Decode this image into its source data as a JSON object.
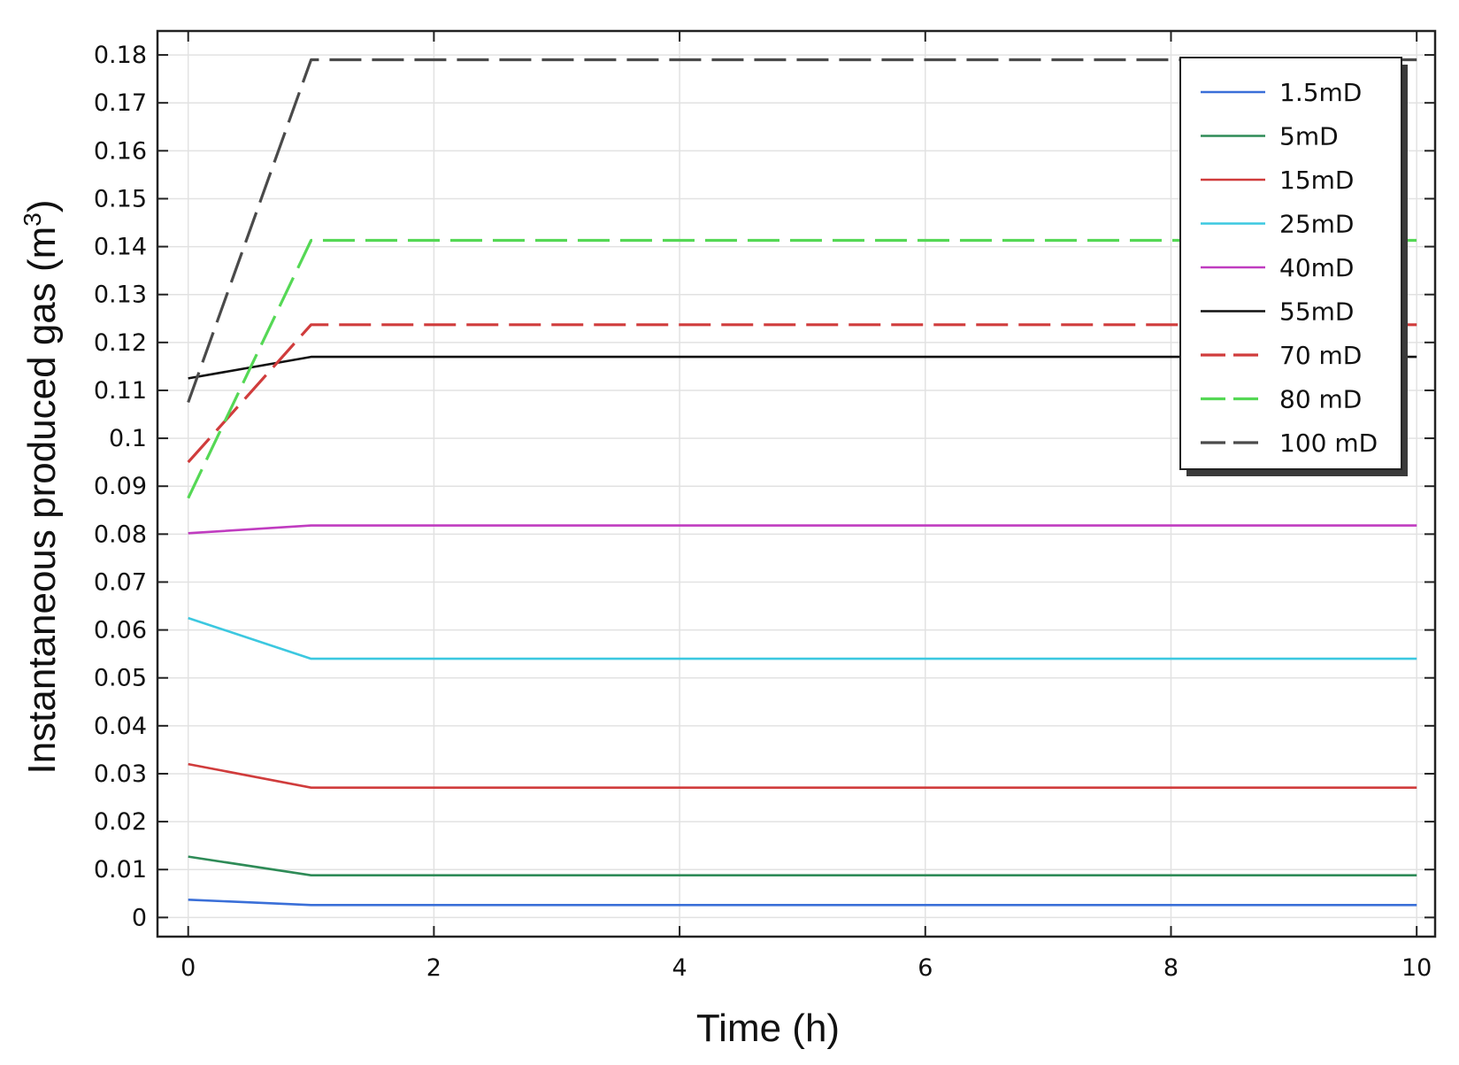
{
  "chart_data": {
    "type": "line",
    "title": "",
    "xlabel": "Time (h)",
    "ylabel_main": "Instantaneous produced gas (m",
    "ylabel_sup": "3",
    "ylabel_end": ")",
    "xlim": [
      -0.25,
      10.15
    ],
    "ylim": [
      -0.004,
      0.185
    ],
    "xticks": [
      0,
      2,
      4,
      6,
      8,
      10
    ],
    "xtick_labels": [
      "0",
      "2",
      "4",
      "6",
      "8",
      "10"
    ],
    "yticks": [
      0,
      0.01,
      0.02,
      0.03,
      0.04,
      0.05,
      0.06,
      0.07,
      0.08,
      0.09,
      0.1,
      0.11,
      0.12,
      0.13,
      0.14,
      0.15,
      0.16,
      0.17,
      0.18
    ],
    "ytick_labels": [
      "0",
      "0.01",
      "0.02",
      "0.03",
      "0.04",
      "0.05",
      "0.06",
      "0.07",
      "0.08",
      "0.09",
      "0.1",
      "0.11",
      "0.12",
      "0.13",
      "0.14",
      "0.15",
      "0.16",
      "0.17",
      "0.18"
    ],
    "grid": true,
    "legend_position": "top-right",
    "series": [
      {
        "name": "1.5mD",
        "color": "#3a6fd8",
        "dashed": false,
        "x": [
          0,
          1,
          10
        ],
        "y": [
          0.0037,
          0.0026,
          0.0026
        ]
      },
      {
        "name": "5mD",
        "color": "#2e8b57",
        "dashed": false,
        "x": [
          0,
          1,
          10
        ],
        "y": [
          0.0127,
          0.0088,
          0.0088
        ]
      },
      {
        "name": "15mD",
        "color": "#d03c3c",
        "dashed": false,
        "x": [
          0,
          1,
          10
        ],
        "y": [
          0.032,
          0.0271,
          0.0271
        ]
      },
      {
        "name": "25mD",
        "color": "#3cc8e0",
        "dashed": false,
        "x": [
          0,
          1,
          10
        ],
        "y": [
          0.0625,
          0.054,
          0.054
        ]
      },
      {
        "name": "40mD",
        "color": "#c03cc0",
        "dashed": false,
        "x": [
          0,
          1,
          10
        ],
        "y": [
          0.0802,
          0.0818,
          0.0818
        ]
      },
      {
        "name": "55mD",
        "color": "#111111",
        "dashed": false,
        "x": [
          0,
          1,
          10
        ],
        "y": [
          0.1125,
          0.117,
          0.117
        ]
      },
      {
        "name": "70 mD",
        "color": "#d03c3c",
        "dashed": true,
        "x": [
          0,
          1,
          10
        ],
        "y": [
          0.095,
          0.1237,
          0.1237
        ]
      },
      {
        "name": "80 mD",
        "color": "#55d855",
        "dashed": true,
        "x": [
          0,
          1,
          10
        ],
        "y": [
          0.0875,
          0.1413,
          0.1413
        ]
      },
      {
        "name": "100 mD",
        "color": "#4a4a4a",
        "dashed": true,
        "x": [
          0,
          1,
          10
        ],
        "y": [
          0.1075,
          0.179,
          0.179
        ]
      }
    ]
  }
}
